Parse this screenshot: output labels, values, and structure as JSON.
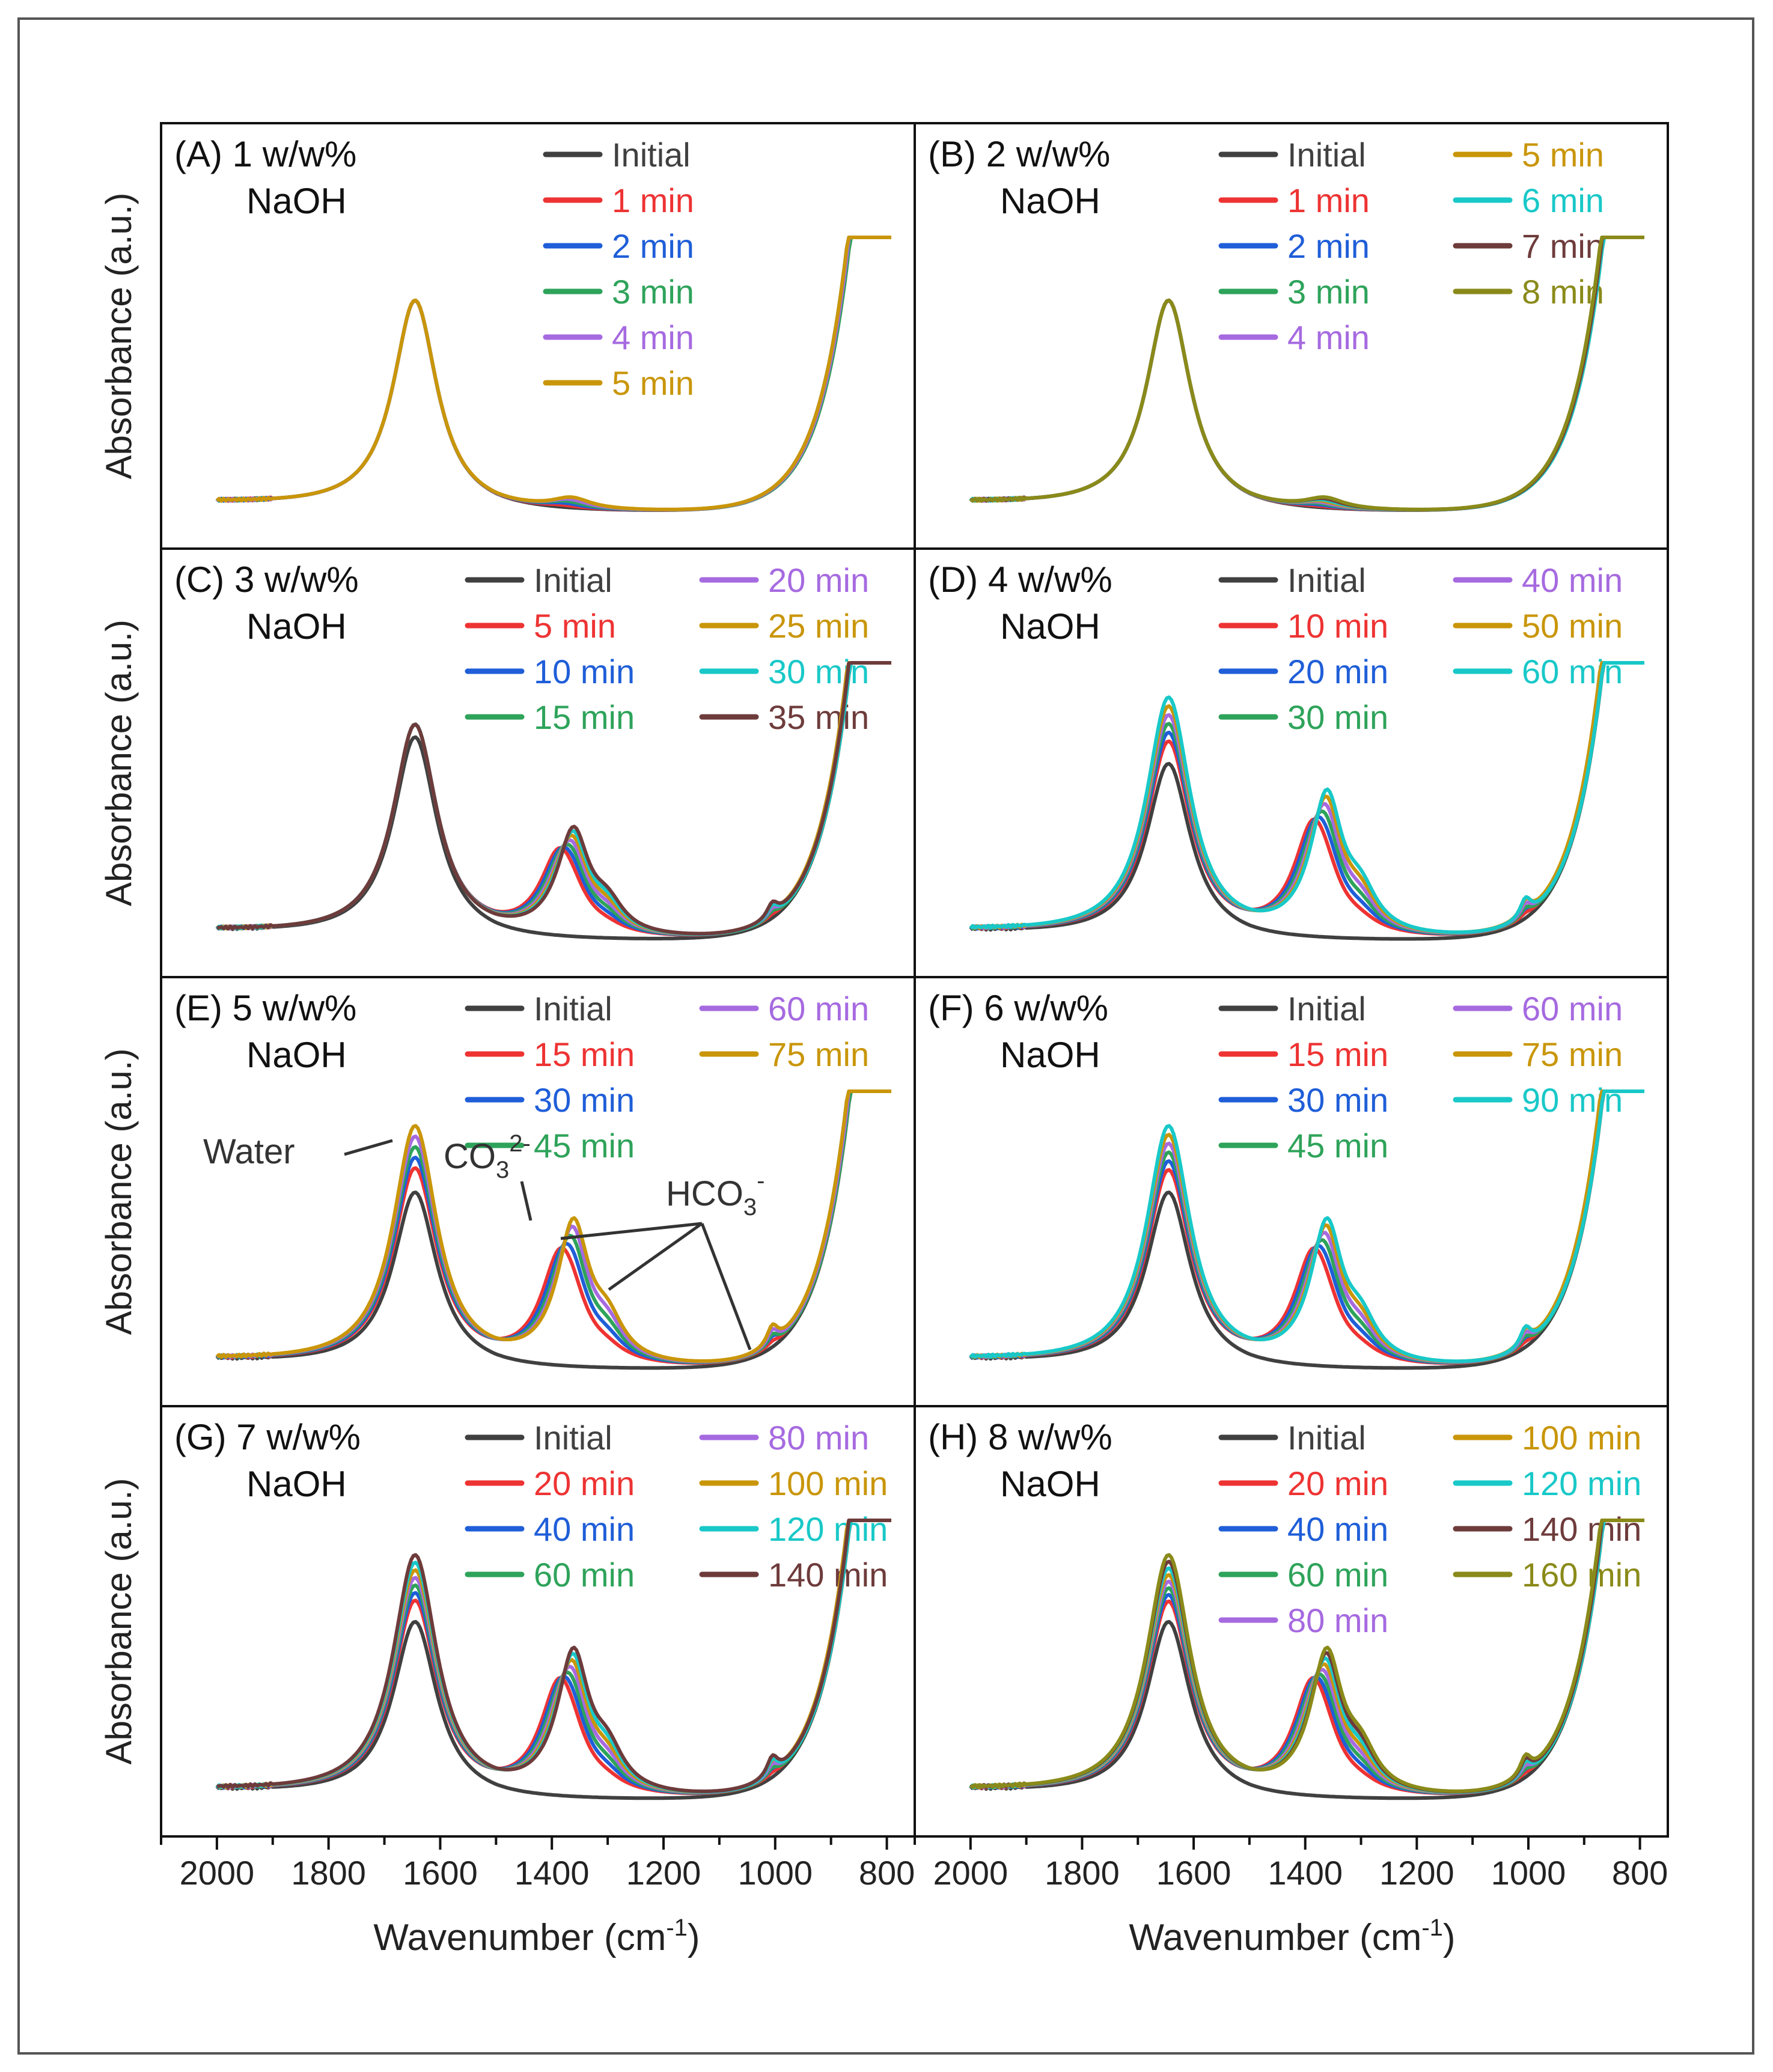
{
  "figure": {
    "y_axis_label": "Absorbance (a.u.)",
    "x_axis_label_main": "Wavenumber (cm",
    "x_axis_label_sup": "-1",
    "x_axis_label_close": ")",
    "x_ticks": [
      2000,
      1800,
      1600,
      1400,
      1200,
      1000,
      800
    ]
  },
  "series_colors": {
    "Initial": "#404040",
    "red": "#ee3333",
    "blue": "#1f5ed8",
    "green": "#2ea35a",
    "purple": "#a66ae0",
    "gold": "#c9960a",
    "cyan": "#19c8c8",
    "brown": "#6e3b3b",
    "olive": "#8a8a1a"
  },
  "chart_data": [
    {
      "type": "line",
      "id": "A",
      "title": "(A) 1 w/w%",
      "subtitle": "NaOH",
      "xlabel": "Wavenumber (cm-1)",
      "ylabel": "Absorbance (a.u.)",
      "xlim": [
        2100,
        750
      ],
      "legend_columns": 1,
      "series": [
        {
          "name": "Initial",
          "color_key": "Initial"
        },
        {
          "name": "1 min",
          "color_key": "red"
        },
        {
          "name": "2 min",
          "color_key": "blue"
        },
        {
          "name": "3 min",
          "color_key": "green"
        },
        {
          "name": "4 min",
          "color_key": "purple"
        },
        {
          "name": "5 min",
          "color_key": "gold"
        }
      ]
    },
    {
      "type": "line",
      "id": "B",
      "title": "(B) 2 w/w%",
      "subtitle": "NaOH",
      "xlabel": "Wavenumber (cm-1)",
      "ylabel": "Absorbance (a.u.)",
      "xlim": [
        2100,
        750
      ],
      "legend_columns": 2,
      "series": [
        {
          "name": "Initial",
          "color_key": "Initial"
        },
        {
          "name": "1 min",
          "color_key": "red"
        },
        {
          "name": "2 min",
          "color_key": "blue"
        },
        {
          "name": "3 min",
          "color_key": "green"
        },
        {
          "name": "4 min",
          "color_key": "purple"
        },
        {
          "name": "5 min",
          "color_key": "gold"
        },
        {
          "name": "6 min",
          "color_key": "cyan"
        },
        {
          "name": "7 min",
          "color_key": "brown"
        },
        {
          "name": "8 min",
          "color_key": "olive"
        }
      ]
    },
    {
      "type": "line",
      "id": "C",
      "title": "(C) 3 w/w%",
      "subtitle": "NaOH",
      "xlabel": "Wavenumber (cm-1)",
      "ylabel": "Absorbance (a.u.)",
      "xlim": [
        2100,
        750
      ],
      "legend_columns": 2,
      "series": [
        {
          "name": "Initial",
          "color_key": "Initial"
        },
        {
          "name": "5 min",
          "color_key": "red"
        },
        {
          "name": "10 min",
          "color_key": "blue"
        },
        {
          "name": "15 min",
          "color_key": "green"
        },
        {
          "name": "20 min",
          "color_key": "purple"
        },
        {
          "name": "25 min",
          "color_key": "gold"
        },
        {
          "name": "30 min",
          "color_key": "cyan"
        },
        {
          "name": "35 min",
          "color_key": "brown"
        }
      ]
    },
    {
      "type": "line",
      "id": "D",
      "title": "(D) 4 w/w%",
      "subtitle": "NaOH",
      "xlabel": "Wavenumber (cm-1)",
      "ylabel": "Absorbance (a.u.)",
      "xlim": [
        2100,
        750
      ],
      "legend_columns": 2,
      "series": [
        {
          "name": "Initial",
          "color_key": "Initial"
        },
        {
          "name": "10 min",
          "color_key": "red"
        },
        {
          "name": "20 min",
          "color_key": "blue"
        },
        {
          "name": "30 min",
          "color_key": "green"
        },
        {
          "name": "40 min",
          "color_key": "purple"
        },
        {
          "name": "50 min",
          "color_key": "gold"
        },
        {
          "name": "60 min",
          "color_key": "cyan"
        }
      ]
    },
    {
      "type": "line",
      "id": "E",
      "title": "(E) 5 w/w%",
      "subtitle": "NaOH",
      "xlabel": "Wavenumber (cm-1)",
      "ylabel": "Absorbance (a.u.)",
      "xlim": [
        2100,
        750
      ],
      "legend_columns": 2,
      "series": [
        {
          "name": "Initial",
          "color_key": "Initial"
        },
        {
          "name": "15 min",
          "color_key": "red"
        },
        {
          "name": "30 min",
          "color_key": "blue"
        },
        {
          "name": "45 min",
          "color_key": "green"
        },
        {
          "name": "60 min",
          "color_key": "purple"
        },
        {
          "name": "75 min",
          "color_key": "gold"
        }
      ],
      "annotations": [
        {
          "text": "Water"
        },
        {
          "text": "CO",
          "sub": "3",
          "sup": "2-"
        },
        {
          "text": "HCO",
          "sub": "3",
          "sup": "-"
        }
      ]
    },
    {
      "type": "line",
      "id": "F",
      "title": "(F) 6 w/w%",
      "subtitle": "NaOH",
      "xlabel": "Wavenumber (cm-1)",
      "ylabel": "Absorbance (a.u.)",
      "xlim": [
        2100,
        750
      ],
      "legend_columns": 2,
      "series": [
        {
          "name": "Initial",
          "color_key": "Initial"
        },
        {
          "name": "15 min",
          "color_key": "red"
        },
        {
          "name": "30 min",
          "color_key": "blue"
        },
        {
          "name": "45 min",
          "color_key": "green"
        },
        {
          "name": "60 min",
          "color_key": "purple"
        },
        {
          "name": "75 min",
          "color_key": "gold"
        },
        {
          "name": "90 min",
          "color_key": "cyan"
        }
      ]
    },
    {
      "type": "line",
      "id": "G",
      "title": "(G) 7 w/w%",
      "subtitle": "NaOH",
      "xlabel": "Wavenumber (cm-1)",
      "ylabel": "Absorbance (a.u.)",
      "xlim": [
        2100,
        750
      ],
      "legend_columns": 2,
      "series": [
        {
          "name": "Initial",
          "color_key": "Initial"
        },
        {
          "name": "20 min",
          "color_key": "red"
        },
        {
          "name": "40 min",
          "color_key": "blue"
        },
        {
          "name": "60 min",
          "color_key": "green"
        },
        {
          "name": "80 min",
          "color_key": "purple"
        },
        {
          "name": "100 min",
          "color_key": "gold"
        },
        {
          "name": "120 min",
          "color_key": "cyan"
        },
        {
          "name": "140 min",
          "color_key": "brown"
        }
      ]
    },
    {
      "type": "line",
      "id": "H",
      "title": "(H) 8 w/w%",
      "subtitle": "NaOH",
      "xlabel": "Wavenumber (cm-1)",
      "ylabel": "Absorbance (a.u.)",
      "xlim": [
        2100,
        750
      ],
      "legend_columns": 2,
      "series": [
        {
          "name": "Initial",
          "color_key": "Initial"
        },
        {
          "name": "20 min",
          "color_key": "red"
        },
        {
          "name": "40 min",
          "color_key": "blue"
        },
        {
          "name": "60 min",
          "color_key": "green"
        },
        {
          "name": "80 min",
          "color_key": "purple"
        },
        {
          "name": "100 min",
          "color_key": "gold"
        },
        {
          "name": "120 min",
          "color_key": "cyan"
        },
        {
          "name": "140 min",
          "color_key": "brown"
        },
        {
          "name": "160 min",
          "color_key": "olive"
        }
      ]
    }
  ]
}
